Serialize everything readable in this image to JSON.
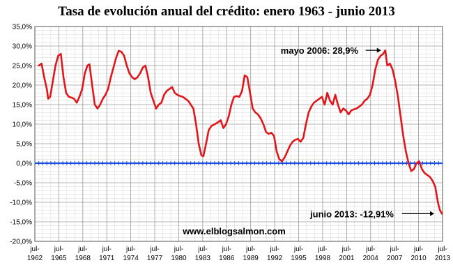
{
  "chart_data": {
    "type": "line",
    "title": "Tasa de evolución anual del crédito: enero 1963 - junio 2013",
    "y_unit": "%",
    "ylim": [
      -20,
      35
    ],
    "y_ticks": [
      35,
      30,
      25,
      20,
      15,
      10,
      5,
      0,
      -5,
      -10,
      -15,
      -20
    ],
    "y_tick_labels": [
      "35,0%",
      "30,0%",
      "25,0%",
      "20,0%",
      "15,0%",
      "10,0%",
      "5,0%",
      "0,0%",
      "-5,0%",
      "-10,0%",
      "-15,0%",
      "-20,0%"
    ],
    "xlim": [
      "1962-07",
      "2013-07"
    ],
    "x_ticks": [
      {
        "month": "jul-",
        "year": "1962"
      },
      {
        "month": "jul-",
        "year": "1965"
      },
      {
        "month": "jul-",
        "year": "1968"
      },
      {
        "month": "jul-",
        "year": "1971"
      },
      {
        "month": "jul-",
        "year": "1974"
      },
      {
        "month": "jul-",
        "year": "1977"
      },
      {
        "month": "jul-",
        "year": "1980"
      },
      {
        "month": "jul-",
        "year": "1983"
      },
      {
        "month": "jul-",
        "year": "1986"
      },
      {
        "month": "jul-",
        "year": "1989"
      },
      {
        "month": "jul-",
        "year": "1992"
      },
      {
        "month": "jul-",
        "year": "1995"
      },
      {
        "month": "jul-",
        "year": "1998"
      },
      {
        "month": "jul-",
        "year": "2001"
      },
      {
        "month": "jul-",
        "year": "2004"
      },
      {
        "month": "jul-",
        "year": "2007"
      },
      {
        "month": "jul-",
        "year": "2010"
      },
      {
        "month": "jul-",
        "year": "2013"
      }
    ],
    "grid": true,
    "zero_line": true,
    "series": [
      {
        "color": "#e0161b",
        "points": [
          [
            "1963-01",
            25
          ],
          [
            "1963-05",
            25.5
          ],
          [
            "1963-09",
            22
          ],
          [
            "1964-01",
            19
          ],
          [
            "1964-03",
            16.5
          ],
          [
            "1964-06",
            17
          ],
          [
            "1964-10",
            21
          ],
          [
            "1965-02",
            25
          ],
          [
            "1965-06",
            27.5
          ],
          [
            "1965-10",
            28
          ],
          [
            "1966-02",
            22
          ],
          [
            "1966-06",
            18
          ],
          [
            "1966-10",
            17
          ],
          [
            "1967-02",
            16.8
          ],
          [
            "1967-06",
            16.5
          ],
          [
            "1967-10",
            15.5
          ],
          [
            "1968-02",
            17
          ],
          [
            "1968-06",
            19
          ],
          [
            "1968-10",
            23
          ],
          [
            "1969-02",
            25
          ],
          [
            "1969-05",
            25.3
          ],
          [
            "1969-09",
            20
          ],
          [
            "1970-01",
            15
          ],
          [
            "1970-05",
            14
          ],
          [
            "1970-09",
            15
          ],
          [
            "1971-01",
            16.5
          ],
          [
            "1971-05",
            17.5
          ],
          [
            "1971-09",
            19
          ],
          [
            "1972-01",
            22
          ],
          [
            "1972-05",
            24.5
          ],
          [
            "1972-09",
            27
          ],
          [
            "1973-01",
            28.8
          ],
          [
            "1973-05",
            28.5
          ],
          [
            "1973-09",
            27.5
          ],
          [
            "1974-01",
            25
          ],
          [
            "1974-05",
            23
          ],
          [
            "1974-09",
            22
          ],
          [
            "1975-01",
            21.5
          ],
          [
            "1975-05",
            22
          ],
          [
            "1975-09",
            23
          ],
          [
            "1976-01",
            24.5
          ],
          [
            "1976-05",
            25
          ],
          [
            "1976-09",
            22
          ],
          [
            "1977-01",
            18
          ],
          [
            "1977-05",
            16
          ],
          [
            "1977-09",
            14
          ],
          [
            "1978-01",
            15
          ],
          [
            "1978-05",
            15.5
          ],
          [
            "1978-09",
            17.5
          ],
          [
            "1979-01",
            18.5
          ],
          [
            "1979-05",
            19
          ],
          [
            "1979-09",
            19.5
          ],
          [
            "1980-01",
            18
          ],
          [
            "1980-05",
            17.5
          ],
          [
            "1980-09",
            17.2
          ],
          [
            "1981-01",
            17
          ],
          [
            "1981-05",
            16.5
          ],
          [
            "1981-09",
            16
          ],
          [
            "1982-01",
            15
          ],
          [
            "1982-05",
            14
          ],
          [
            "1982-09",
            10
          ],
          [
            "1983-01",
            5
          ],
          [
            "1983-05",
            2
          ],
          [
            "1983-08",
            1.8
          ],
          [
            "1983-12",
            5
          ],
          [
            "1984-04",
            8.5
          ],
          [
            "1984-08",
            9.5
          ],
          [
            "1985-01",
            10
          ],
          [
            "1985-06",
            10.5
          ],
          [
            "1985-10",
            11
          ],
          [
            "1986-02",
            9
          ],
          [
            "1986-06",
            10
          ],
          [
            "1986-10",
            12
          ],
          [
            "1987-02",
            15
          ],
          [
            "1987-06",
            17
          ],
          [
            "1987-10",
            17.2
          ],
          [
            "1988-02",
            17
          ],
          [
            "1988-06",
            18.5
          ],
          [
            "1988-10",
            22.5
          ],
          [
            "1989-02",
            22
          ],
          [
            "1989-06",
            18
          ],
          [
            "1989-10",
            14
          ],
          [
            "1990-02",
            13
          ],
          [
            "1990-06",
            12.5
          ],
          [
            "1990-10",
            11.5
          ],
          [
            "1991-02",
            10
          ],
          [
            "1991-06",
            8
          ],
          [
            "1991-10",
            7.5
          ],
          [
            "1992-02",
            7.8
          ],
          [
            "1992-06",
            7
          ],
          [
            "1992-10",
            3
          ],
          [
            "1993-02",
            1
          ],
          [
            "1993-06",
            0.5
          ],
          [
            "1993-10",
            1.5
          ],
          [
            "1994-02",
            3
          ],
          [
            "1994-06",
            4.5
          ],
          [
            "1994-10",
            5.5
          ],
          [
            "1995-02",
            6
          ],
          [
            "1995-06",
            6.2
          ],
          [
            "1995-10",
            5.5
          ],
          [
            "1996-02",
            6.5
          ],
          [
            "1996-06",
            10
          ],
          [
            "1996-10",
            13
          ],
          [
            "1997-02",
            14.5
          ],
          [
            "1997-06",
            15.5
          ],
          [
            "1997-10",
            16
          ],
          [
            "1998-02",
            16.5
          ],
          [
            "1998-06",
            17
          ],
          [
            "1998-10",
            15
          ],
          [
            "1999-02",
            18
          ],
          [
            "1999-06",
            16
          ],
          [
            "1999-10",
            15
          ],
          [
            "2000-02",
            17.5
          ],
          [
            "2000-06",
            15
          ],
          [
            "2000-10",
            13
          ],
          [
            "2001-02",
            14
          ],
          [
            "2001-06",
            13.5
          ],
          [
            "2001-10",
            12.5
          ],
          [
            "2002-02",
            13.5
          ],
          [
            "2002-06",
            13.8
          ],
          [
            "2002-10",
            14
          ],
          [
            "2003-02",
            14.5
          ],
          [
            "2003-06",
            15
          ],
          [
            "2003-10",
            16
          ],
          [
            "2004-02",
            16.5
          ],
          [
            "2004-06",
            17.5
          ],
          [
            "2004-10",
            20
          ],
          [
            "2005-02",
            24
          ],
          [
            "2005-06",
            26.5
          ],
          [
            "2005-10",
            27.5
          ],
          [
            "2006-02",
            28
          ],
          [
            "2006-05",
            28.9
          ],
          [
            "2006-08",
            25
          ],
          [
            "2006-12",
            25.5
          ],
          [
            "2007-04",
            24
          ],
          [
            "2007-08",
            21
          ],
          [
            "2007-12",
            17
          ],
          [
            "2008-04",
            12
          ],
          [
            "2008-08",
            7
          ],
          [
            "2008-12",
            3
          ],
          [
            "2009-04",
            0
          ],
          [
            "2009-08",
            -2
          ],
          [
            "2009-12",
            -1.5
          ],
          [
            "2010-04",
            0
          ],
          [
            "2010-08",
            0.5
          ],
          [
            "2010-12",
            -1.5
          ],
          [
            "2011-04",
            -2.5
          ],
          [
            "2011-08",
            -3
          ],
          [
            "2011-12",
            -3.5
          ],
          [
            "2012-04",
            -4.5
          ],
          [
            "2012-08",
            -6
          ],
          [
            "2012-12",
            -10
          ],
          [
            "2013-03",
            -12
          ],
          [
            "2013-06",
            -12.91
          ]
        ]
      }
    ],
    "annotations": [
      {
        "text": "mayo 2006: 28,9%",
        "point": [
          "2006-05",
          28.9
        ]
      },
      {
        "text": "junio 2013: -12,91%",
        "point": [
          "2013-06",
          -12.91
        ]
      }
    ],
    "watermark": "www.elblogsalmon.com"
  }
}
